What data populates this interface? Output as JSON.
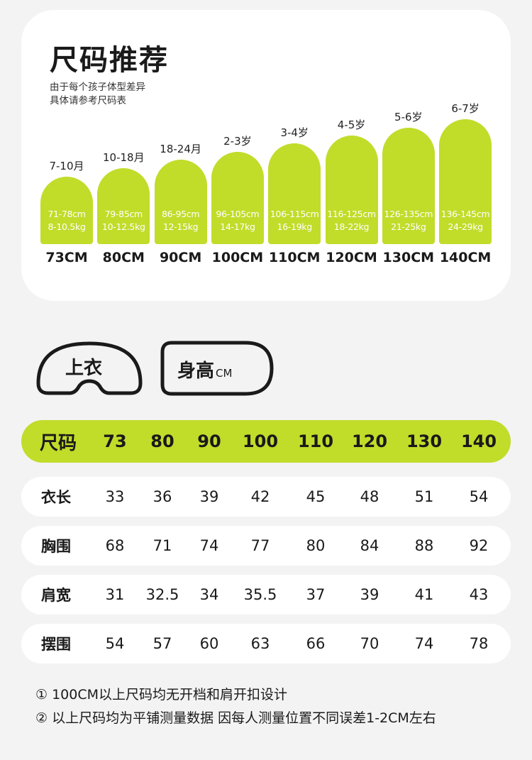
{
  "title": "尺码推荐",
  "subtitle_lines": [
    "由于每个孩子体型差异",
    "具体请参考尺码表"
  ],
  "accent_color": "#c2dc2a",
  "sizes": [
    {
      "age": "7-10月",
      "height_range": "71-78cm",
      "weight_range": "8-10.5kg",
      "size": "73CM"
    },
    {
      "age": "10-18月",
      "height_range": "79-85cm",
      "weight_range": "10-12.5kg",
      "size": "80CM"
    },
    {
      "age": "18-24月",
      "height_range": "86-95cm",
      "weight_range": "12-15kg",
      "size": "90CM"
    },
    {
      "age": "2-3岁",
      "height_range": "96-105cm",
      "weight_range": "14-17kg",
      "size": "100CM"
    },
    {
      "age": "3-4岁",
      "height_range": "106-115cm",
      "weight_range": "16-19kg",
      "size": "110CM"
    },
    {
      "age": "4-5岁",
      "height_range": "116-125cm",
      "weight_range": "18-22kg",
      "size": "120CM"
    },
    {
      "age": "5-6岁",
      "height_range": "126-135cm",
      "weight_range": "21-25kg",
      "size": "130CM"
    },
    {
      "age": "6-7岁",
      "height_range": "136-145cm",
      "weight_range": "24-29kg",
      "size": "140CM"
    }
  ],
  "tabs": {
    "top": "上衣",
    "height_label": "身高",
    "height_unit": "CM"
  },
  "table": {
    "header_label": "尺码",
    "columns": [
      "73",
      "80",
      "90",
      "100",
      "110",
      "120",
      "130",
      "140"
    ],
    "rows": [
      {
        "label": "衣长",
        "values": [
          "33",
          "36",
          "39",
          "42",
          "45",
          "48",
          "51",
          "54"
        ]
      },
      {
        "label": "胸围",
        "values": [
          "68",
          "71",
          "74",
          "77",
          "80",
          "84",
          "88",
          "92"
        ]
      },
      {
        "label": "肩宽",
        "values": [
          "31",
          "32.5",
          "34",
          "35.5",
          "37",
          "39",
          "41",
          "43"
        ]
      },
      {
        "label": "摆围",
        "values": [
          "54",
          "57",
          "60",
          "63",
          "66",
          "70",
          "74",
          "78"
        ]
      }
    ]
  },
  "notes": [
    "① 100CM以上尺码均无开档和肩开扣设计",
    "② 以上尺码均为平铺测量数据 因每人测量位置不同误差1-2CM左右"
  ]
}
